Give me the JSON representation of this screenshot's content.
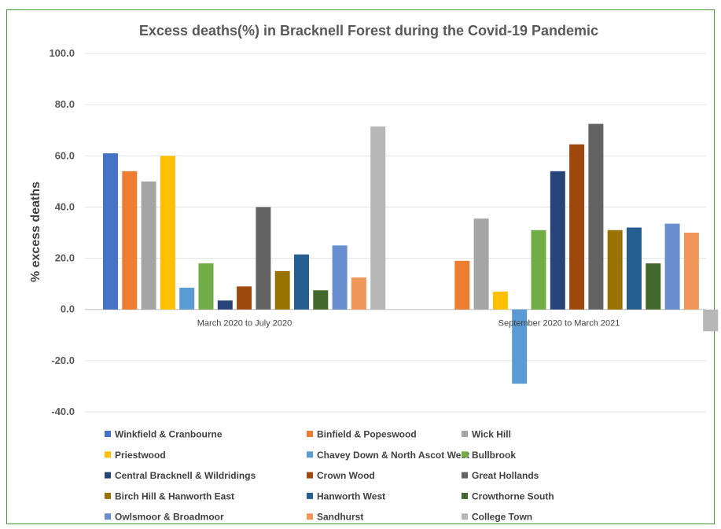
{
  "chart_data": {
    "type": "bar",
    "title": "Excess deaths(%)  in Bracknell Forest during the Covid-19  Pandemic",
    "ylabel": "% excess deaths",
    "xlabel": "",
    "ylim": [
      -40,
      100
    ],
    "yticks": [
      "100.0",
      "80.0",
      "60.0",
      "40.0",
      "20.0",
      "0.0",
      "-20.0",
      "-40.0"
    ],
    "ytick_values": [
      100,
      80,
      60,
      40,
      20,
      0,
      -20,
      -40
    ],
    "grid": true,
    "legend_position": "bottom",
    "categories": [
      "March 2020 to July 2020",
      "September 2020 to March 2021"
    ],
    "series": [
      {
        "name": "Winkfield & Cranbourne",
        "color": "#4472C4",
        "values": [
          61,
          null
        ]
      },
      {
        "name": "Binfield & Popeswood",
        "color": "#ED7D31",
        "values": [
          54,
          19
        ]
      },
      {
        "name": "Wick Hill",
        "color": "#A5A5A5",
        "values": [
          50,
          35.5
        ]
      },
      {
        "name": "Priestwood",
        "color": "#FFC000",
        "values": [
          60,
          7
        ]
      },
      {
        "name": "Chavey Down & North Ascot West",
        "color": "#5B9BD5",
        "values": [
          8.5,
          -29
        ]
      },
      {
        "name": "Bullbrook",
        "color": "#70AD47",
        "values": [
          18,
          31
        ]
      },
      {
        "name": "Central Bracknell & Wildridings",
        "color": "#264478",
        "values": [
          3.5,
          54
        ]
      },
      {
        "name": "Crown Wood",
        "color": "#9E480E",
        "values": [
          9,
          64.5
        ]
      },
      {
        "name": "Great Hollands",
        "color": "#636363",
        "values": [
          40,
          72.5
        ]
      },
      {
        "name": "Birch Hill & Hanworth East",
        "color": "#997300",
        "values": [
          15,
          31
        ]
      },
      {
        "name": "Hanworth West",
        "color": "#255E91",
        "values": [
          21.5,
          32
        ]
      },
      {
        "name": "Crowthorne South",
        "color": "#43682B",
        "values": [
          7.5,
          18
        ]
      },
      {
        "name": "Owlsmoor & Broadmoor",
        "color": "#698ED0",
        "values": [
          25,
          33.5
        ]
      },
      {
        "name": "Sandhurst",
        "color": "#F1975A",
        "values": [
          12.5,
          30
        ]
      },
      {
        "name": "College Town",
        "color": "#B7B7B7",
        "values": [
          71.5,
          -8.5
        ]
      }
    ]
  }
}
